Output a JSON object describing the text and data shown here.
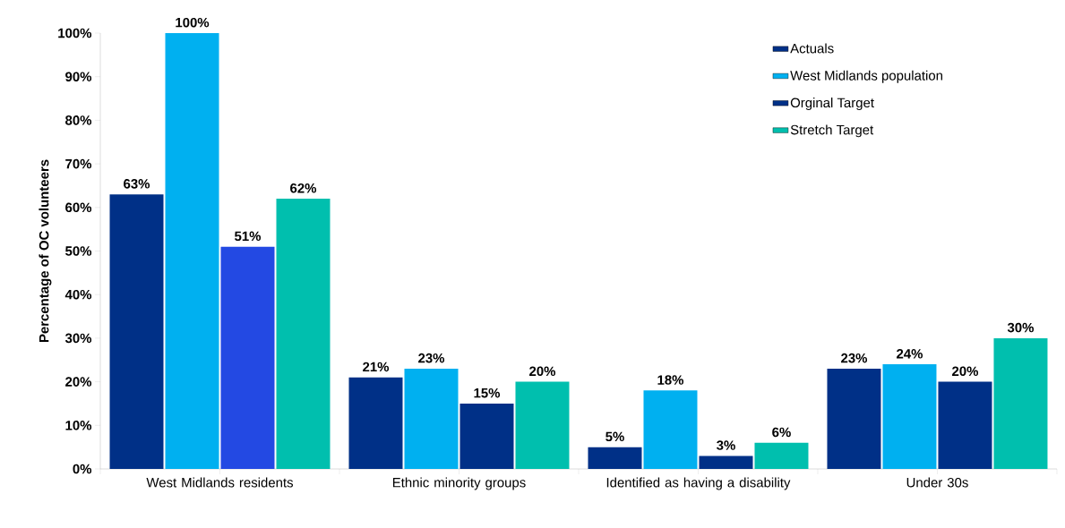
{
  "chart_data": {
    "type": "bar",
    "ylabel": "Percentage of OC volunteers",
    "categories": [
      "West Midlands residents",
      "Ethnic minority groups",
      "Identified as having a disability",
      "Under 30s"
    ],
    "series": [
      {
        "name": "Actuals",
        "color": "#003087",
        "values": [
          63,
          21,
          5,
          23
        ],
        "value_labels": [
          "63%",
          "21%",
          "5%",
          "23%"
        ]
      },
      {
        "name": "West Midlands population",
        "color": "#00b0f0",
        "values": [
          100,
          23,
          18,
          24
        ],
        "value_labels": [
          "100%",
          "23%",
          "18%",
          "24%"
        ]
      },
      {
        "name": "Orginal Target",
        "color": "#003087",
        "colors": [
          "#2349e3",
          "#003087",
          "#003087",
          "#003087"
        ],
        "values": [
          51,
          15,
          3,
          20
        ],
        "value_labels": [
          "51%",
          "15%",
          "3%",
          "20%"
        ]
      },
      {
        "name": "Stretch Target",
        "color": "#00bfae",
        "values": [
          62,
          20,
          6,
          30
        ],
        "value_labels": [
          "62%",
          "20%",
          "6%",
          "30%"
        ]
      }
    ],
    "ylim": [
      0,
      100
    ],
    "yticks": [
      {
        "value": 0,
        "label": "0%"
      },
      {
        "value": 10,
        "label": "10%"
      },
      {
        "value": 20,
        "label": "20%"
      },
      {
        "value": 30,
        "label": "30%"
      },
      {
        "value": 40,
        "label": "40%"
      },
      {
        "value": 50,
        "label": "50%"
      },
      {
        "value": 60,
        "label": "60%"
      },
      {
        "value": 70,
        "label": "70%"
      },
      {
        "value": 80,
        "label": "80%"
      },
      {
        "value": 90,
        "label": "90%"
      },
      {
        "value": 100,
        "label": "100%"
      }
    ],
    "legend": "top right",
    "grid": false
  }
}
